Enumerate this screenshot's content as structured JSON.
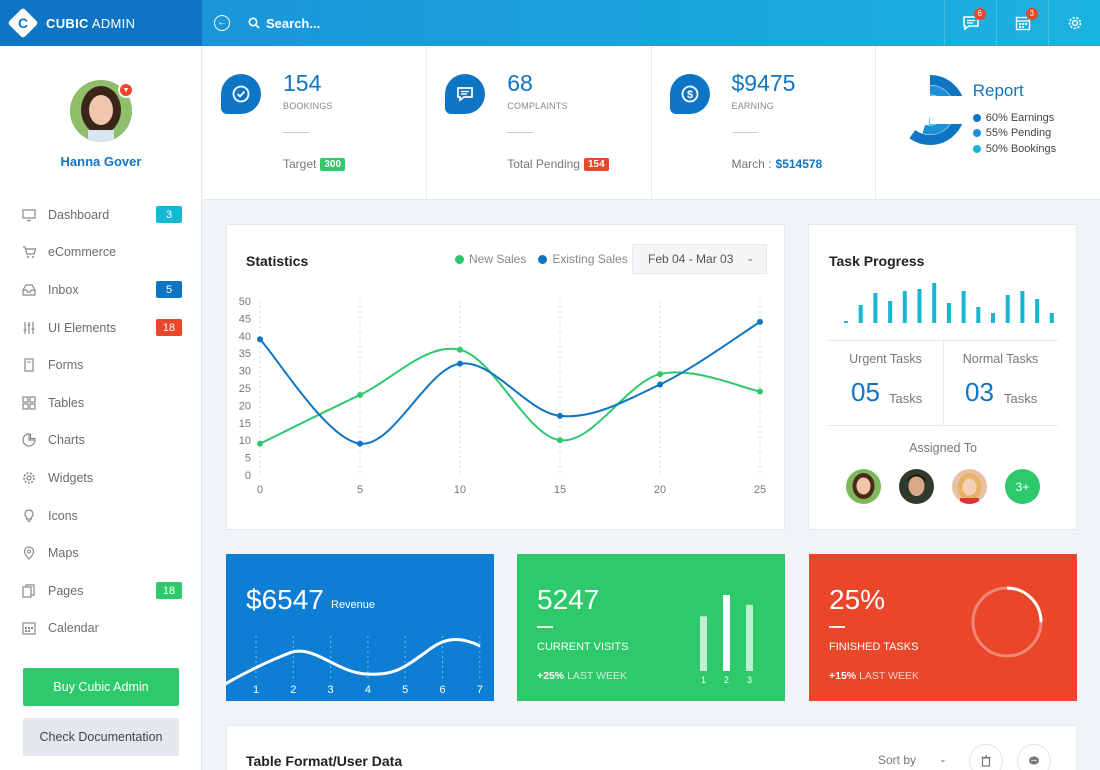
{
  "brand": {
    "strong": "CUBIC",
    "light": "ADMIN",
    "logo_letter": "C"
  },
  "topbar": {
    "search_placeholder": "Search...",
    "messages_count": "6",
    "calendar_count": "3",
    "icons": [
      "back-arrow-icon",
      "search-icon",
      "chat-icon",
      "calendar-icon",
      "gear-icon"
    ]
  },
  "profile": {
    "name": "Hanna Gover"
  },
  "sidebar": {
    "items": [
      {
        "label": "Dashboard",
        "icon": "monitor-icon",
        "badge": "3",
        "badge_color": "#17b7d2"
      },
      {
        "label": "eCommerce",
        "icon": "cart-icon",
        "badge": null
      },
      {
        "label": "Inbox",
        "icon": "inbox-icon",
        "badge": "5",
        "badge_color": "#0e75c4"
      },
      {
        "label": "UI Elements",
        "icon": "sliders-icon",
        "badge": "18",
        "badge_color": "#e9462a"
      },
      {
        "label": "Forms",
        "icon": "form-icon",
        "badge": null
      },
      {
        "label": "Tables",
        "icon": "grid-icon",
        "badge": null
      },
      {
        "label": "Charts",
        "icon": "pie-icon",
        "badge": null
      },
      {
        "label": "Widgets",
        "icon": "cog-icon",
        "badge": null
      },
      {
        "label": "Icons",
        "icon": "bulb-icon",
        "badge": null
      },
      {
        "label": "Maps",
        "icon": "pin-icon",
        "badge": null
      },
      {
        "label": "Pages",
        "icon": "pages-icon",
        "badge": "18",
        "badge_color": "#2ec96b"
      },
      {
        "label": "Calendar",
        "icon": "calendar-icon",
        "badge": null
      }
    ],
    "buy_label": "Buy Cubic Admin",
    "docs_label": "Check Documentation"
  },
  "stats": [
    {
      "value": "154",
      "label": "BOOKINGS",
      "foot": "Target",
      "tag": "300",
      "tag_color": "#2ec96b",
      "icon": "check-icon"
    },
    {
      "value": "68",
      "label": "COMPLAINTS",
      "foot": "Total Pending",
      "tag": "154",
      "tag_color": "#e9462a",
      "icon": "message-icon"
    },
    {
      "value": "$9475",
      "label": "EARNING",
      "foot": "March :",
      "amount": "$514578",
      "icon": "dollar-icon"
    }
  ],
  "report": {
    "title": "Report",
    "items": [
      {
        "label": "60% Earnings",
        "color": "#0e75c4"
      },
      {
        "label": "55% Pending",
        "color": "#1c8fd8"
      },
      {
        "label": "50% Bookings",
        "color": "#17b7d2"
      }
    ]
  },
  "statistics": {
    "title": "Statistics",
    "legend": [
      {
        "label": "New Sales",
        "color": "#2ec96b"
      },
      {
        "label": "Existing Sales",
        "color": "#0e75c4"
      }
    ],
    "date_range": "Feb 04 - Mar 03"
  },
  "chart_data": {
    "type": "line",
    "x": [
      0,
      5,
      10,
      15,
      20,
      25
    ],
    "series": [
      {
        "name": "New Sales",
        "color": "#2ec96b",
        "values": [
          9,
          23,
          36,
          10,
          29,
          24
        ]
      },
      {
        "name": "Existing Sales",
        "color": "#0e75c4",
        "values": [
          39,
          9,
          32,
          17,
          26,
          44
        ]
      }
    ],
    "xlim": [
      0,
      25
    ],
    "ylim": [
      0,
      50
    ],
    "yticks": [
      0,
      5,
      10,
      15,
      20,
      25,
      30,
      35,
      40,
      45,
      50
    ],
    "xticks": [
      0,
      5,
      10,
      15,
      20,
      25
    ],
    "grid": "vertical-dotted"
  },
  "task_progress": {
    "title": "Task Progress",
    "bars": [
      0.05,
      0.45,
      0.75,
      0.55,
      0.8,
      0.85,
      1.0,
      0.5,
      0.8,
      0.4,
      0.25,
      0.7,
      0.8,
      0.6,
      0.25
    ],
    "urgent_label": "Urgent Tasks",
    "urgent_value": "05",
    "normal_label": "Normal Tasks",
    "normal_value": "03",
    "unit": "Tasks",
    "assigned_label": "Assigned To",
    "more_label": "3+"
  },
  "tiles": {
    "revenue": {
      "value": "$6547",
      "label": "Revenue",
      "color": "#0e7ed4",
      "x_labels": [
        "1",
        "2",
        "3",
        "4",
        "5",
        "6",
        "7"
      ]
    },
    "visits": {
      "value": "5247",
      "label": "CURRENT VISITS",
      "delta": "+25%",
      "delta_label": "LAST WEEK",
      "color": "#2ec96b",
      "bar_labels": [
        "1",
        "2",
        "3"
      ],
      "bars": [
        0.72,
        1.0,
        0.87
      ]
    },
    "tasks": {
      "value": "25%",
      "label": "FINISHED TASKS",
      "delta": "+15%",
      "delta_label": "LAST WEEK",
      "color": "#e9462a",
      "progress": 0.25
    }
  },
  "table": {
    "title": "Table Format/User Data",
    "sort_label": "Sort by"
  }
}
